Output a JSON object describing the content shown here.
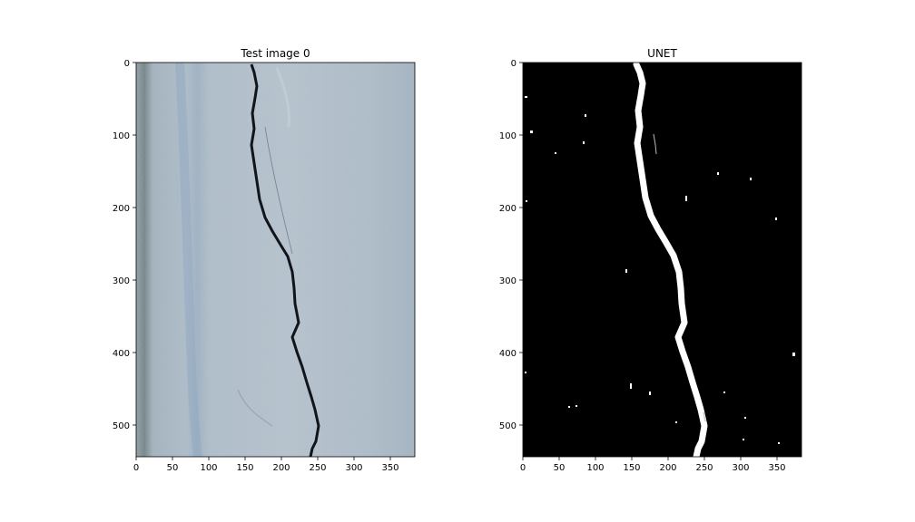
{
  "figure": {
    "panels": [
      {
        "id": "test",
        "title": "Test image 0",
        "image": "concrete-wall-photo-with-crack",
        "x_ticks": [
          "0",
          "50",
          "100",
          "150",
          "200",
          "250",
          "300",
          "350"
        ],
        "y_ticks": [
          "0",
          "100",
          "200",
          "300",
          "400",
          "500"
        ],
        "x_range": [
          0,
          384
        ],
        "y_range": [
          0,
          544
        ]
      },
      {
        "id": "unet",
        "title": "UNET",
        "image": "binary-crack-segmentation-mask",
        "x_ticks": [
          "0",
          "50",
          "100",
          "150",
          "200",
          "250",
          "300",
          "350"
        ],
        "y_ticks": [
          "0",
          "100",
          "200",
          "300",
          "400",
          "500"
        ],
        "x_range": [
          0,
          384
        ],
        "y_range": [
          0,
          544
        ]
      }
    ],
    "colors": {
      "concrete": "#a9b9c6",
      "crack": "#111418",
      "mask_background": "#000000",
      "mask_crack": "#ffffff"
    }
  }
}
